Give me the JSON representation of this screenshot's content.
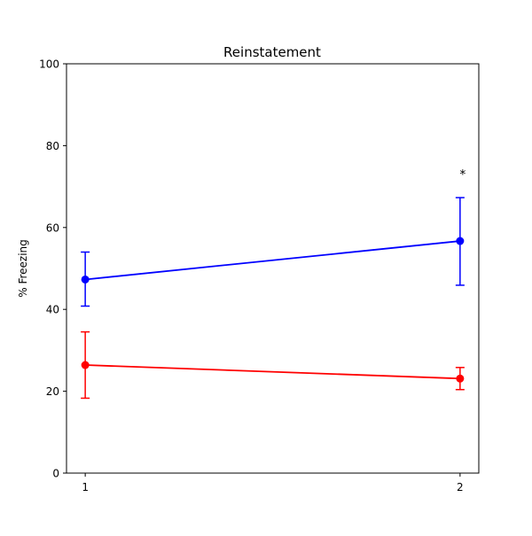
{
  "chart_data": {
    "type": "line",
    "title": "Reinstatement",
    "xlabel": "",
    "ylabel": "% Freezing",
    "x": [
      1,
      2
    ],
    "x_tick_labels": [
      "1",
      "2"
    ],
    "xlim": [
      0.95,
      2.05
    ],
    "ylim": [
      0,
      100
    ],
    "y_ticks": [
      0,
      20,
      40,
      60,
      80,
      100
    ],
    "y_tick_labels": [
      "0",
      "20",
      "40",
      "60",
      "80",
      "100"
    ],
    "grid": false,
    "series": [
      {
        "color": "#0000ff",
        "values": [
          47.3,
          56.7
        ],
        "err_low": [
          40.8,
          45.9
        ],
        "err_high": [
          54.0,
          67.3
        ]
      },
      {
        "color": "#ff0000",
        "values": [
          26.4,
          23.1
        ],
        "err_low": [
          18.3,
          20.4
        ],
        "err_high": [
          34.5,
          25.8
        ]
      }
    ],
    "annotations": [
      {
        "text": "*",
        "x": 2,
        "y": 73.5
      }
    ]
  }
}
